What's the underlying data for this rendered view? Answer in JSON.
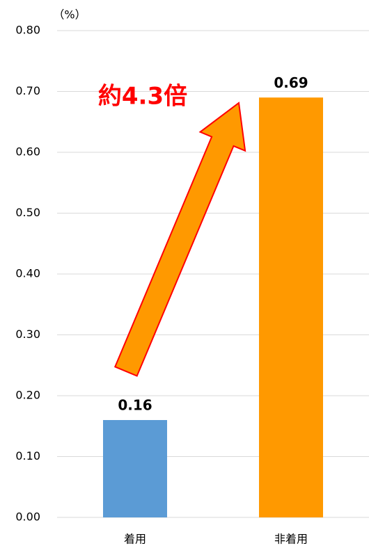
{
  "chart_data": {
    "type": "bar",
    "y_unit_label": "（%）",
    "annotation": "約4.3倍",
    "categories": [
      "着用",
      "非着用"
    ],
    "values": [
      0.16,
      0.69
    ],
    "colors": [
      "#5b9bd5",
      "#ff9900"
    ],
    "ylim": [
      0,
      0.8
    ],
    "yticks": [
      {
        "value": 0,
        "label": "0.00"
      },
      {
        "value": 0.1,
        "label": "0.10"
      },
      {
        "value": 0.2,
        "label": "0.20"
      },
      {
        "value": 0.3,
        "label": "0.30"
      },
      {
        "value": 0.4,
        "label": "0.40"
      },
      {
        "value": 0.5,
        "label": "0.50"
      },
      {
        "value": 0.6,
        "label": "0.60"
      },
      {
        "value": 0.7,
        "label": "0.70"
      },
      {
        "value": 0.8,
        "label": "0.80"
      }
    ],
    "grid": true
  }
}
